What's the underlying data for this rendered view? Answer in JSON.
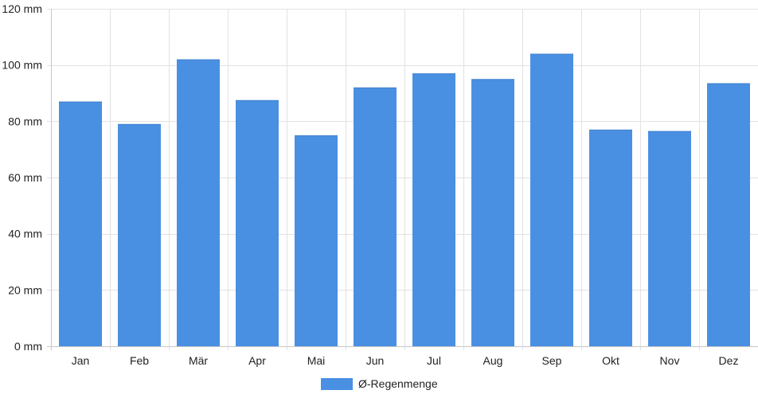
{
  "chart_data": {
    "type": "bar",
    "categories": [
      "Jan",
      "Feb",
      "Mär",
      "Apr",
      "Mai",
      "Jun",
      "Jul",
      "Aug",
      "Sep",
      "Okt",
      "Nov",
      "Dez"
    ],
    "series": [
      {
        "name": "Ø-Regenmenge",
        "values": [
          87,
          79,
          102,
          87.5,
          75,
          92,
          97,
          95,
          104,
          77,
          76.5,
          93.5
        ],
        "color": "#4a90e2"
      }
    ],
    "y_unit": "mm",
    "yticks": [
      0,
      20,
      40,
      60,
      80,
      100,
      120
    ],
    "ylim": [
      0,
      120
    ],
    "grid": true,
    "legend_position": "bottom-center"
  }
}
